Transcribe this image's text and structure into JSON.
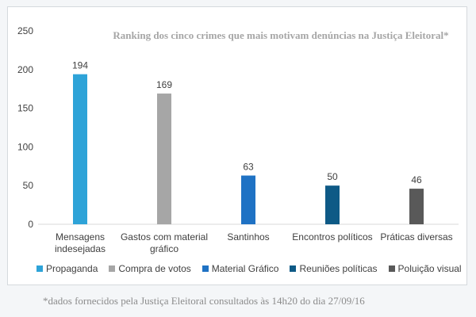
{
  "chart_data": {
    "type": "bar",
    "title": "Ranking dos cinco crimes que mais motivam denúncias na Justiça Eleitoral*",
    "categories": [
      [
        "Mensagens",
        "indesejadas"
      ],
      [
        "Gastos com material",
        "gráfico"
      ],
      [
        "Santinhos"
      ],
      [
        "Encontros políticos"
      ],
      [
        "Práticas diversas"
      ]
    ],
    "series": [
      {
        "name": "Propaganda",
        "color": "#2ea3d8",
        "values": [
          194,
          null,
          null,
          null,
          null
        ]
      },
      {
        "name": "Compra de votos",
        "color": "#a6a6a6",
        "values": [
          null,
          169,
          null,
          null,
          null
        ]
      },
      {
        "name": "Material Gráfico",
        "color": "#1f72c4",
        "values": [
          null,
          null,
          63,
          null,
          null
        ]
      },
      {
        "name": "Reuniões políticas",
        "color": "#0e5a86",
        "values": [
          null,
          null,
          null,
          50,
          null
        ]
      },
      {
        "name": "Poluição visual",
        "color": "#595959",
        "values": [
          null,
          null,
          null,
          null,
          46
        ]
      }
    ],
    "yticks": [
      0,
      50,
      100,
      150,
      200,
      250
    ],
    "ylim": [
      0,
      250
    ],
    "xlabel": "",
    "ylabel": "",
    "legend_position": "bottom"
  },
  "footnote": "*dados fornecidos pela Justiça Eleitoral consultados às 14h20 do dia 27/09/16"
}
